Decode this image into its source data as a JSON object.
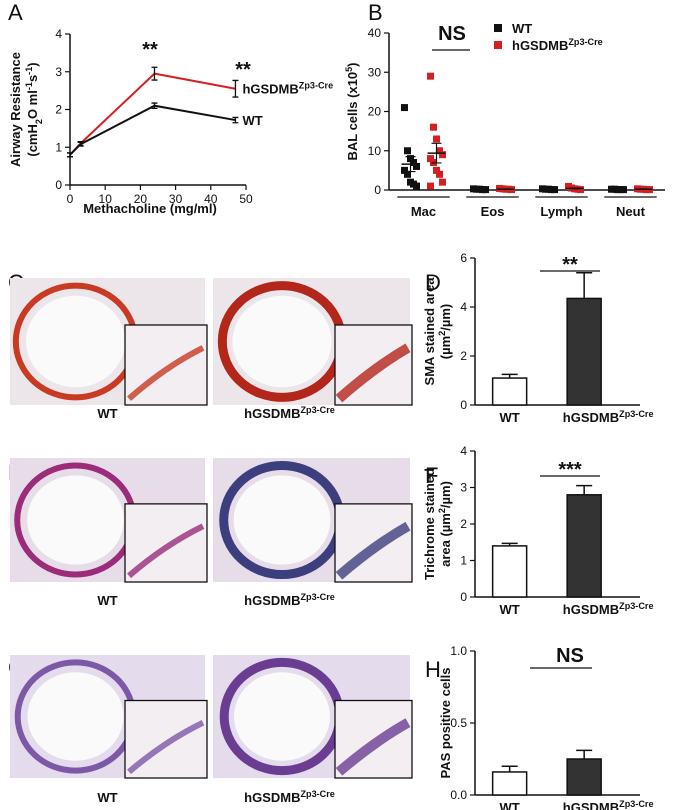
{
  "chart_data": [
    {
      "panel": "A",
      "type": "line",
      "x_label": "Methacholine (mg/ml)",
      "y_label": [
        [
          "Airway Resistance"
        ],
        [
          "(cmH",
          {
            "sub": "2"
          },
          "O ml",
          {
            "sup": "-1"
          },
          "s",
          {
            "sup": "-1"
          },
          ")"
        ]
      ],
      "x": [
        0,
        3,
        24,
        47
      ],
      "xlim": [
        0,
        50
      ],
      "xticks": [
        0,
        10,
        20,
        30,
        40,
        50
      ],
      "ylim": [
        0,
        4
      ],
      "yticks": [
        0,
        1,
        2,
        3,
        4
      ],
      "series": [
        {
          "name": [
            "hGSDMB",
            {
              "sup": "Zp3-Cre"
            }
          ],
          "color": "#d42020",
          "values": [
            0.8,
            1.1,
            2.95,
            2.55
          ],
          "errors": [
            0.05,
            0.05,
            0.17,
            0.22
          ]
        },
        {
          "name": [
            "WT"
          ],
          "color": "#111111",
          "values": [
            0.8,
            1.08,
            2.1,
            1.72
          ],
          "errors": [
            0.05,
            0.05,
            0.07,
            0.07
          ]
        }
      ],
      "annotations": [
        "**",
        "**"
      ]
    },
    {
      "panel": "B",
      "type": "dot",
      "y_label": [
        [
          "BAL cells (x10",
          {
            "sup": "5"
          },
          ")"
        ]
      ],
      "categories": [
        "Mac",
        "Eos",
        "Lymph",
        "Neut"
      ],
      "ylim": [
        0,
        40
      ],
      "yticks": [
        0,
        10,
        20,
        30,
        40
      ],
      "series": [
        {
          "name": [
            "WT"
          ],
          "color": "#111111",
          "values": [
            [
              21,
              10,
              8,
              7,
              6,
              5,
              4,
              2,
              1.5,
              1
            ],
            [
              0.3,
              0.2,
              0.2,
              0.1,
              0.1
            ],
            [
              0.3,
              0.2,
              0.2,
              0.1,
              0.1
            ],
            [
              0.2,
              0.2,
              0.1,
              0.1,
              0.1
            ]
          ],
          "means": [
            6.6,
            0.2,
            0.2,
            0.1
          ],
          "errors": [
            1.9,
            0.05,
            0.05,
            0.05
          ]
        },
        {
          "name": [
            "hGSDMB",
            {
              "sup": "Zp3-Cre"
            }
          ],
          "color": "#d42020",
          "values": [
            [
              29,
              16,
              13,
              10,
              9,
              8,
              7,
              5,
              4,
              2,
              1
            ],
            [
              0.4,
              0.3,
              0.2,
              0.2,
              0.1
            ],
            [
              0.9,
              0.5,
              0.3,
              0.2,
              0.1
            ],
            [
              0.3,
              0.2,
              0.2,
              0.1,
              0.1
            ]
          ],
          "means": [
            9.4,
            0.2,
            0.4,
            0.2
          ],
          "errors": [
            2.5,
            0.05,
            0.1,
            0.05
          ]
        }
      ],
      "annotations": [
        "NS"
      ]
    },
    {
      "panel": "D",
      "type": "bar",
      "y_label": [
        [
          "SMA stained area"
        ],
        [
          "(µm",
          {
            "sup": "2"
          },
          "/µm)"
        ]
      ],
      "categories": [
        [
          "WT"
        ],
        [
          "hGSDMB",
          {
            "sup": "Zp3-Cre"
          }
        ]
      ],
      "values": [
        1.1,
        4.35
      ],
      "errors": [
        0.15,
        1.05
      ],
      "colors": [
        "#ffffff",
        "#333333"
      ],
      "ylim": [
        0,
        6
      ],
      "yticks": [
        0,
        2,
        4,
        6
      ],
      "annotations": [
        "**"
      ]
    },
    {
      "panel": "F",
      "type": "bar",
      "y_label": [
        [
          "Trichrome stained"
        ],
        [
          "area (µm",
          {
            "sup": "2"
          },
          "/µm)"
        ]
      ],
      "categories": [
        [
          "WT"
        ],
        [
          "hGSDMB",
          {
            "sup": "Zp3-Cre"
          }
        ]
      ],
      "values": [
        1.4,
        2.8
      ],
      "errors": [
        0.07,
        0.25
      ],
      "colors": [
        "#ffffff",
        "#333333"
      ],
      "ylim": [
        0,
        4
      ],
      "yticks": [
        0,
        1,
        2,
        3,
        4
      ],
      "annotations": [
        "***"
      ]
    },
    {
      "panel": "H",
      "type": "bar",
      "y_label": [
        [
          "PAS positive cells"
        ]
      ],
      "categories": [
        [
          "WT"
        ],
        [
          "hGSDMB",
          {
            "sup": "Zp3-Cre"
          }
        ]
      ],
      "values": [
        0.16,
        0.25
      ],
      "errors": [
        0.04,
        0.06
      ],
      "colors": [
        "#ffffff",
        "#333333"
      ],
      "ylim": [
        0,
        1.0
      ],
      "yticks": [
        {
          "value": 0,
          "label": "0.0"
        },
        {
          "value": 0.5,
          "label": "0.5"
        },
        {
          "value": 1,
          "label": "1.0"
        }
      ],
      "annotations": [
        "NS"
      ]
    }
  ],
  "image_panels": [
    {
      "letter": "C",
      "captions": [
        [
          "WT"
        ],
        [
          "hGSDMB",
          {
            "sup": "Zp3-Cre"
          }
        ]
      ]
    },
    {
      "letter": "E",
      "captions": [
        [
          "WT"
        ],
        [
          "hGSDMB",
          {
            "sup": "Zp3-Cre"
          }
        ]
      ]
    },
    {
      "letter": "G",
      "captions": [
        [
          "WT"
        ],
        [
          "hGSDMB",
          {
            "sup": "Zp3-Cre"
          }
        ]
      ]
    }
  ]
}
